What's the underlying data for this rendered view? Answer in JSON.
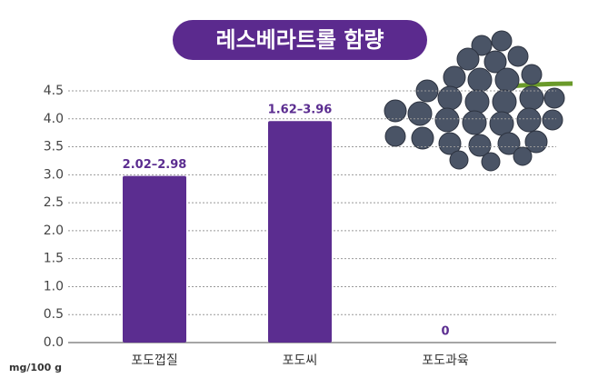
{
  "chart_data": {
    "type": "bar",
    "title": "레스베라트롤 함량",
    "unit_label": "mg/100 g",
    "categories": [
      "포도껍질",
      "포도씨",
      "포도과육"
    ],
    "values": [
      2.98,
      3.96,
      0
    ],
    "value_labels": [
      "2.02–2.98",
      "1.62–3.96",
      "0"
    ],
    "color": "#5b2d90",
    "ylim": [
      0,
      4.5
    ],
    "yticks": [
      {
        "value": 0,
        "label": "0.0"
      },
      0.5,
      {
        "value": 1,
        "label": "1.0"
      },
      1.5,
      {
        "value": 2,
        "label": "2.0"
      },
      2.5,
      {
        "value": 3,
        "label": "3.0"
      },
      3.5,
      {
        "value": 4,
        "label": "4.0"
      },
      4.5
    ],
    "grid": true
  }
}
